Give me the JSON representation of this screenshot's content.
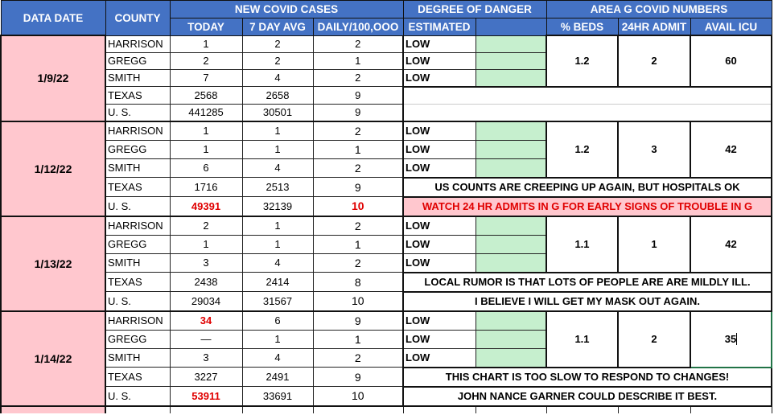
{
  "header": {
    "data_date": "DATA DATE",
    "county": "COUNTY",
    "new_cases": "NEW COVID CASES",
    "today": "TODAY",
    "avg7": "7 DAY AVG",
    "daily": "DAILY/100,OOO",
    "danger": "DEGREE OF DANGER",
    "estimated": "ESTIMATED",
    "area_g": "AREA G COVID NUMBERS",
    "beds": "% BEDS",
    "admit": "24HR ADMIT",
    "icu": "AVAIL ICU"
  },
  "colors": {
    "header_blue": "#4472c4",
    "date_pink": "#ffc7ce",
    "danger_green": "#c6efce",
    "alert_red": "#e00000",
    "selection_green": "#217346"
  },
  "blocks": [
    {
      "date": "1/9/22",
      "rows": [
        {
          "county": "HARRISON",
          "today": "1",
          "avg": "2",
          "daily": "2"
        },
        {
          "county": "GREGG",
          "today": "2",
          "avg": "2",
          "daily": "1"
        },
        {
          "county": "SMITH",
          "today": "7",
          "avg": "4",
          "daily": "2"
        },
        {
          "county": "TEXAS",
          "today": "2568",
          "avg": "2658",
          "daily": "9"
        },
        {
          "county": "U. S.",
          "today": "441285",
          "avg": "30501",
          "daily": "9"
        }
      ],
      "danger": [
        "LOW",
        "LOW",
        "LOW"
      ],
      "beds": "1.2",
      "admit": "2",
      "icu": "60",
      "notes": [
        "",
        ""
      ]
    },
    {
      "date": "1/12/22",
      "rows": [
        {
          "county": "HARRISON",
          "today": "1",
          "avg": "1",
          "daily": "2"
        },
        {
          "county": "GREGG",
          "today": "1",
          "avg": "1",
          "daily": "1"
        },
        {
          "county": "SMITH",
          "today": "6",
          "avg": "4",
          "daily": "2"
        },
        {
          "county": "TEXAS",
          "today": "1716",
          "avg": "2513",
          "daily": "9"
        },
        {
          "county": "U. S.",
          "today": "49391",
          "avg": "32139",
          "daily": "10",
          "red_today": true,
          "red_daily": true
        }
      ],
      "danger": [
        "LOW",
        "LOW",
        "LOW"
      ],
      "beds": "1.2",
      "admit": "3",
      "icu": "42",
      "notes": [
        "US COUNTS ARE CREEPING UP AGAIN, BUT HOSPITALS OK",
        "WATCH 24 HR ADMITS IN G FOR EARLY SIGNS OF TROUBLE IN G"
      ],
      "pink_note": 1
    },
    {
      "date": "1/13/22",
      "rows": [
        {
          "county": "HARRISON",
          "today": "2",
          "avg": "1",
          "daily": "2"
        },
        {
          "county": "GREGG",
          "today": "1",
          "avg": "1",
          "daily": "1"
        },
        {
          "county": "SMITH",
          "today": "3",
          "avg": "4",
          "daily": "2"
        },
        {
          "county": "TEXAS",
          "today": "2438",
          "avg": "2414",
          "daily": "8"
        },
        {
          "county": "U. S.",
          "today": "29034",
          "avg": "31567",
          "daily": "10"
        }
      ],
      "danger": [
        "LOW",
        "LOW",
        "LOW"
      ],
      "beds": "1.1",
      "admit": "1",
      "icu": "42",
      "notes": [
        "LOCAL RUMOR IS THAT LOTS OF PEOPLE ARE ARE MILDLY ILL.",
        "I BELIEVE I WILL GET MY MASK OUT AGAIN."
      ]
    },
    {
      "date": "1/14/22",
      "rows": [
        {
          "county": "HARRISON",
          "today": "34",
          "avg": "6",
          "daily": "9",
          "red_today": true
        },
        {
          "county": "GREGG",
          "today": "—",
          "avg": "1",
          "daily": "1"
        },
        {
          "county": "SMITH",
          "today": "3",
          "avg": "4",
          "daily": "2"
        },
        {
          "county": "TEXAS",
          "today": "3227",
          "avg": "2491",
          "daily": "9"
        },
        {
          "county": "U. S.",
          "today": "53911",
          "avg": "33691",
          "daily": "10",
          "red_today": true
        }
      ],
      "danger": [
        "LOW",
        "LOW",
        "LOW"
      ],
      "beds": "1.1",
      "admit": "2",
      "icu": "35",
      "icu_selected": true,
      "notes": [
        "THIS CHART IS TOO SLOW TO RESPOND TO CHANGES!",
        "JOHN NANCE GARNER COULD DESCRIBE IT BEST."
      ]
    }
  ]
}
